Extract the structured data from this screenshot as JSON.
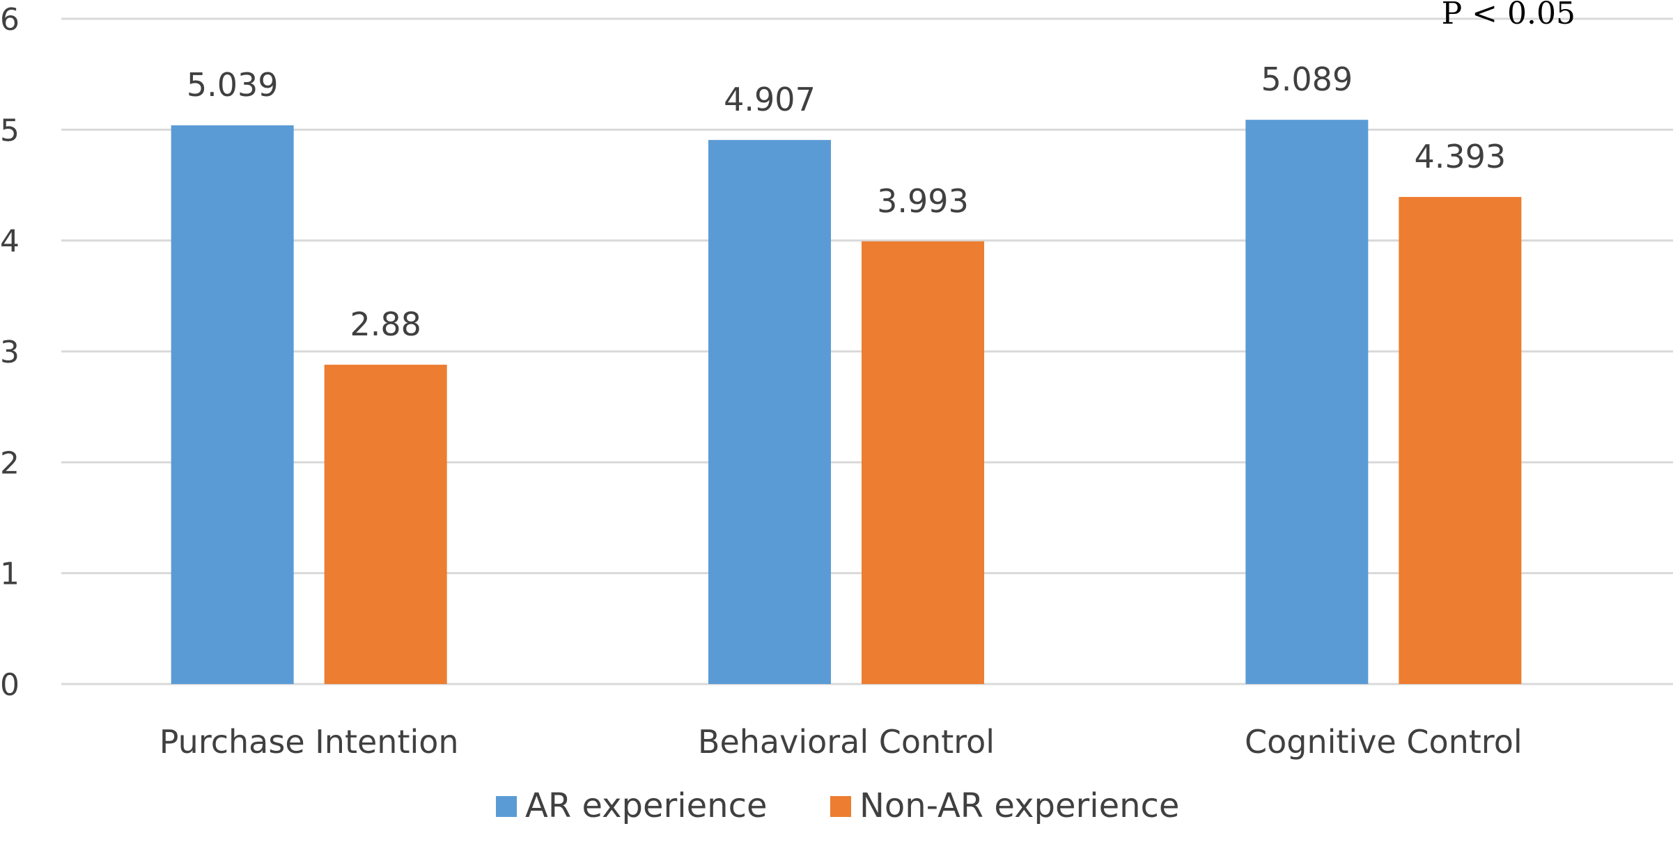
{
  "chart_data": {
    "type": "bar",
    "categories": [
      "Purchase Intention",
      "Behavioral Control",
      "Cognitive Control"
    ],
    "series": [
      {
        "name": "AR experience",
        "values": [
          5.039,
          4.907,
          5.089
        ],
        "color": "#5b9bd5"
      },
      {
        "name": "Non-AR experience",
        "values": [
          2.88,
          3.993,
          4.393
        ],
        "color": "#ed7d31"
      }
    ],
    "data_labels": [
      [
        "5.039",
        "4.907",
        "5.089"
      ],
      [
        "2.88",
        "3.993",
        "4.393"
      ]
    ],
    "ylim": [
      0,
      6
    ],
    "yticks": [
      "0",
      "1",
      "2",
      "3",
      "4",
      "5",
      "6"
    ],
    "title": "",
    "xlabel": "",
    "ylabel": "",
    "grid": true,
    "legend_position": "bottom",
    "annotation": "P < 0.05"
  }
}
